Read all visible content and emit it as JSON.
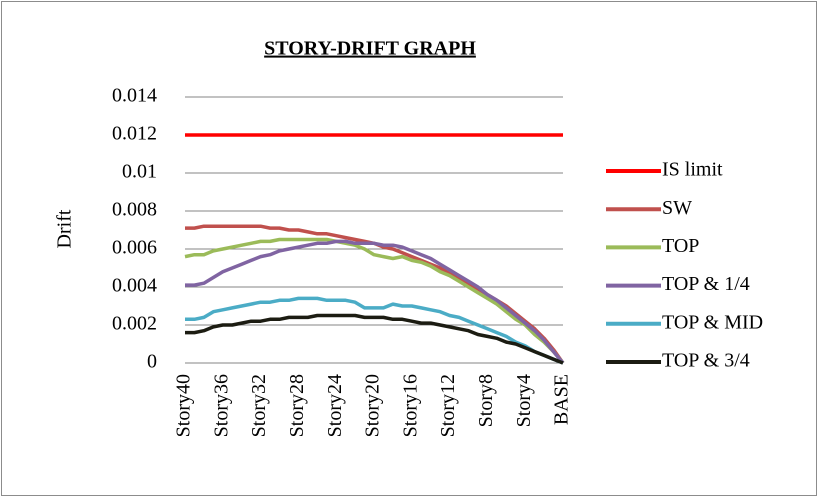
{
  "chart_data": {
    "type": "line",
    "title": "STORY-DRIFT GRAPH",
    "y_label": "Drift",
    "categories": [
      "Story40",
      null,
      null,
      null,
      "Story36",
      null,
      null,
      null,
      "Story32",
      null,
      null,
      null,
      "Story28",
      null,
      null,
      null,
      "Story24",
      null,
      null,
      null,
      "Story20",
      null,
      null,
      null,
      "Story16",
      null,
      null,
      null,
      "Story12",
      null,
      null,
      null,
      "Story8",
      null,
      null,
      null,
      "Story4",
      null,
      null,
      null,
      "BASE"
    ],
    "ylim": [
      0,
      0.014
    ],
    "yticks": [
      0,
      0.002,
      0.004,
      0.006,
      0.008,
      0.01,
      0.012,
      0.014
    ],
    "grid": true,
    "legend": "right",
    "series": [
      {
        "name": "IS limit",
        "color": "#ff0000",
        "values": [
          0.012,
          0.012,
          0.012,
          0.012,
          0.012,
          0.012,
          0.012,
          0.012,
          0.012,
          0.012,
          0.012,
          0.012,
          0.012,
          0.012,
          0.012,
          0.012,
          0.012,
          0.012,
          0.012,
          0.012,
          0.012,
          0.012,
          0.012,
          0.012,
          0.012,
          0.012,
          0.012,
          0.012,
          0.012,
          0.012,
          0.012,
          0.012,
          0.012,
          0.012,
          0.012,
          0.012,
          0.012,
          0.012,
          0.012,
          0.012,
          0.012
        ]
      },
      {
        "name": "SW",
        "color": "#c0504d",
        "values": [
          0.0071,
          0.0071,
          0.0072,
          0.0072,
          0.0072,
          0.0072,
          0.0072,
          0.0072,
          0.0072,
          0.0071,
          0.0071,
          0.007,
          0.007,
          0.0069,
          0.0068,
          0.0068,
          0.0067,
          0.0066,
          0.0065,
          0.0064,
          0.0063,
          0.0061,
          0.006,
          0.0058,
          0.0056,
          0.0054,
          0.0052,
          0.005,
          0.0047,
          0.0045,
          0.0042,
          0.0039,
          0.0036,
          0.0033,
          0.003,
          0.0026,
          0.0022,
          0.0018,
          0.0013,
          0.0007,
          0
        ]
      },
      {
        "name": "TOP",
        "color": "#9bbb59",
        "values": [
          0.0056,
          0.0057,
          0.0057,
          0.0059,
          0.006,
          0.0061,
          0.0062,
          0.0063,
          0.0064,
          0.0064,
          0.0065,
          0.0065,
          0.0065,
          0.0065,
          0.0065,
          0.0065,
          0.0064,
          0.0063,
          0.0062,
          0.006,
          0.0057,
          0.0056,
          0.0055,
          0.0056,
          0.0054,
          0.0053,
          0.0051,
          0.0048,
          0.0046,
          0.0043,
          0.004,
          0.0037,
          0.0034,
          0.0031,
          0.0027,
          0.0023,
          0.002,
          0.0015,
          0.0011,
          0.0006,
          0
        ]
      },
      {
        "name": "TOP & 1/4",
        "color": "#8064a2",
        "values": [
          0.0041,
          0.0041,
          0.0042,
          0.0045,
          0.0048,
          0.005,
          0.0052,
          0.0054,
          0.0056,
          0.0057,
          0.0059,
          0.006,
          0.0061,
          0.0062,
          0.0063,
          0.0063,
          0.0064,
          0.0064,
          0.0063,
          0.0063,
          0.0063,
          0.0062,
          0.0062,
          0.0061,
          0.0059,
          0.0057,
          0.0055,
          0.0052,
          0.0049,
          0.0046,
          0.0043,
          0.004,
          0.0036,
          0.0033,
          0.0029,
          0.0025,
          0.0021,
          0.0017,
          0.0012,
          0.0006,
          0
        ]
      },
      {
        "name": "TOP & MID",
        "color": "#4bacc6",
        "values": [
          0.0023,
          0.0023,
          0.0024,
          0.0027,
          0.0028,
          0.0029,
          0.003,
          0.0031,
          0.0032,
          0.0032,
          0.0033,
          0.0033,
          0.0034,
          0.0034,
          0.0034,
          0.0033,
          0.0033,
          0.0033,
          0.0032,
          0.0029,
          0.0029,
          0.0029,
          0.0031,
          0.003,
          0.003,
          0.0029,
          0.0028,
          0.0027,
          0.0025,
          0.0024,
          0.0022,
          0.002,
          0.0018,
          0.0016,
          0.0014,
          0.0011,
          0.0009,
          0.0006,
          0.0004,
          0.0002,
          0
        ]
      },
      {
        "name": "TOP & 3/4",
        "color": "#1c1c12",
        "values": [
          0.0016,
          0.0016,
          0.0017,
          0.0019,
          0.002,
          0.002,
          0.0021,
          0.0022,
          0.0022,
          0.0023,
          0.0023,
          0.0024,
          0.0024,
          0.0024,
          0.0025,
          0.0025,
          0.0025,
          0.0025,
          0.0025,
          0.0024,
          0.0024,
          0.0024,
          0.0023,
          0.0023,
          0.0022,
          0.0021,
          0.0021,
          0.002,
          0.0019,
          0.0018,
          0.0017,
          0.0015,
          0.0014,
          0.0013,
          0.0011,
          0.001,
          0.0008,
          0.0006,
          0.0004,
          0.0002,
          0
        ]
      }
    ]
  }
}
